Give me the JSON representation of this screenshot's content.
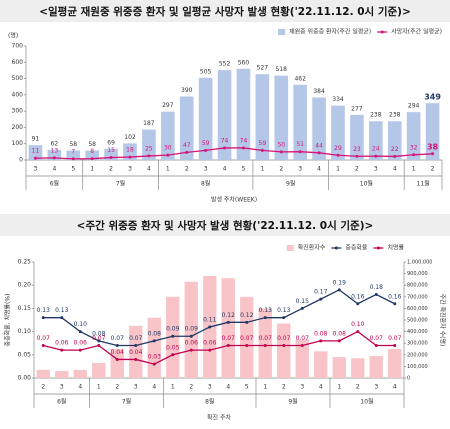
{
  "chart_data": [
    {
      "type": "bar-line",
      "title": "<일평균 재원중 위중증 환자 및 일평균 사망자 발생 현황('22.11.12. 0시 기준)>",
      "y_unit": "(명)",
      "x_label": "발생 주차(WEEK)",
      "category_groups": [
        {
          "label": "6월",
          "categories": [
            "3",
            "4",
            "5"
          ]
        },
        {
          "label": "7월",
          "categories": [
            "1",
            "2",
            "3",
            "4"
          ]
        },
        {
          "label": "8월",
          "categories": [
            "1",
            "2",
            "3",
            "4",
            "5"
          ]
        },
        {
          "label": "9월",
          "categories": [
            "1",
            "2",
            "3",
            "4"
          ]
        },
        {
          "label": "10월",
          "categories": [
            "1",
            "2",
            "3",
            "4"
          ]
        },
        {
          "label": "11월",
          "categories": [
            "1",
            "2"
          ]
        }
      ],
      "series": [
        {
          "name": "재원중 위중증 환자(주간 일평균)",
          "kind": "bar",
          "color": "#b4c7e7",
          "values": [
            91,
            62,
            58,
            58,
            69,
            102,
            187,
            297,
            390,
            505,
            552,
            560,
            527,
            518,
            462,
            384,
            334,
            277,
            238,
            238,
            294,
            349
          ]
        },
        {
          "name": "사망자(주간 일평균)",
          "kind": "line",
          "color": "#d6147a",
          "values": [
            11,
            13,
            7,
            8,
            15,
            18,
            25,
            30,
            47,
            59,
            74,
            74,
            59,
            50,
            51,
            44,
            29,
            23,
            24,
            22,
            32,
            38
          ]
        }
      ],
      "ylim": [
        0,
        700
      ],
      "yticks": [
        0,
        100,
        200,
        300,
        400,
        500,
        600,
        700
      ],
      "legend": "top-right",
      "grid": false
    },
    {
      "type": "bar-line",
      "title": "<주간 위중증 환자 및 사망자 발생 현황('22.11.12. 0시 기준)>",
      "y_label": "중증화율, 치명률(%)",
      "y2_label": "주간 확진환자 수(명)",
      "x_label": "확진 주차",
      "category_groups": [
        {
          "label": "6월",
          "categories": [
            "2",
            "3",
            "4"
          ]
        },
        {
          "label": "7월",
          "categories": [
            "1",
            "2",
            "3",
            "4"
          ]
        },
        {
          "label": "8월",
          "categories": [
            "1",
            "2",
            "3",
            "4",
            "5"
          ]
        },
        {
          "label": "9월",
          "categories": [
            "1",
            "2",
            "3",
            "4"
          ]
        },
        {
          "label": "10월",
          "categories": [
            "1",
            "2",
            "3",
            "4"
          ]
        }
      ],
      "series": [
        {
          "name": "확진환자수",
          "kind": "bar",
          "axis": "y2",
          "color": "#f8c4c8",
          "values": [
            70000,
            60000,
            70000,
            130000,
            250000,
            450000,
            520000,
            700000,
            830000,
            880000,
            860000,
            700000,
            600000,
            470000,
            330000,
            230000,
            180000,
            170000,
            190000,
            250000
          ]
        },
        {
          "name": "중증화율",
          "kind": "line",
          "color": "#1f3864",
          "values": [
            0.13,
            0.13,
            0.1,
            0.08,
            0.07,
            0.07,
            0.08,
            0.09,
            0.09,
            0.11,
            0.12,
            0.12,
            0.13,
            0.13,
            0.15,
            0.17,
            0.19,
            0.16,
            0.18,
            0.16
          ],
          "value_labels": [
            "0.13",
            "0.13",
            "0.10",
            "0.08",
            "0.07",
            "0.07",
            "0.08",
            "0.09",
            "0.09",
            "0.11",
            "0.12",
            "0.12",
            "0.13",
            "0.13",
            "0.15",
            "0.17",
            "0.19",
            "0.16",
            "0.18",
            "0.16"
          ]
        },
        {
          "name": "치명률",
          "kind": "line",
          "color": "#c0004f",
          "values": [
            0.07,
            0.06,
            0.06,
            0.07,
            0.04,
            0.04,
            0.03,
            0.05,
            0.06,
            0.06,
            0.07,
            0.07,
            0.07,
            0.07,
            0.07,
            0.08,
            0.08,
            0.1,
            0.07,
            0.07
          ],
          "value_labels": [
            "0.07",
            "0.06",
            "0.06",
            "0.07",
            "0.04",
            "0.04",
            "0.03",
            "0.05",
            "0.06",
            "0.06",
            "0.07",
            "0.07",
            "0.07",
            "0.07",
            "0.07",
            "0.08",
            "0.08",
            "0.10",
            "0.07",
            "0.07"
          ]
        }
      ],
      "ylim": [
        0,
        0.25
      ],
      "yticks": [
        {
          "value": 0,
          "label": "0.00"
        },
        {
          "value": 0.05,
          "label": "0.05"
        },
        {
          "value": 0.1,
          "label": "0.10"
        },
        {
          "value": 0.15,
          "label": "0.15"
        },
        {
          "value": 0.2,
          "label": "0.20"
        },
        {
          "value": 0.25,
          "label": "0.25"
        }
      ],
      "y2lim": [
        0,
        1000000
      ],
      "y2ticks": [
        {
          "value": 0,
          "label": "0"
        },
        {
          "value": 100000,
          "label": "100,000"
        },
        {
          "value": 200000,
          "label": "200,000"
        },
        {
          "value": 300000,
          "label": "300,000"
        },
        {
          "value": 400000,
          "label": "400,000"
        },
        {
          "value": 500000,
          "label": "500,000"
        },
        {
          "value": 600000,
          "label": "600,000"
        },
        {
          "value": 700000,
          "label": "700,000"
        },
        {
          "value": 800000,
          "label": "800,000"
        },
        {
          "value": 900000,
          "label": "900,000"
        },
        {
          "value": 1000000,
          "label": "1,000,000"
        }
      ],
      "legend": "top-right",
      "grid": false
    }
  ]
}
